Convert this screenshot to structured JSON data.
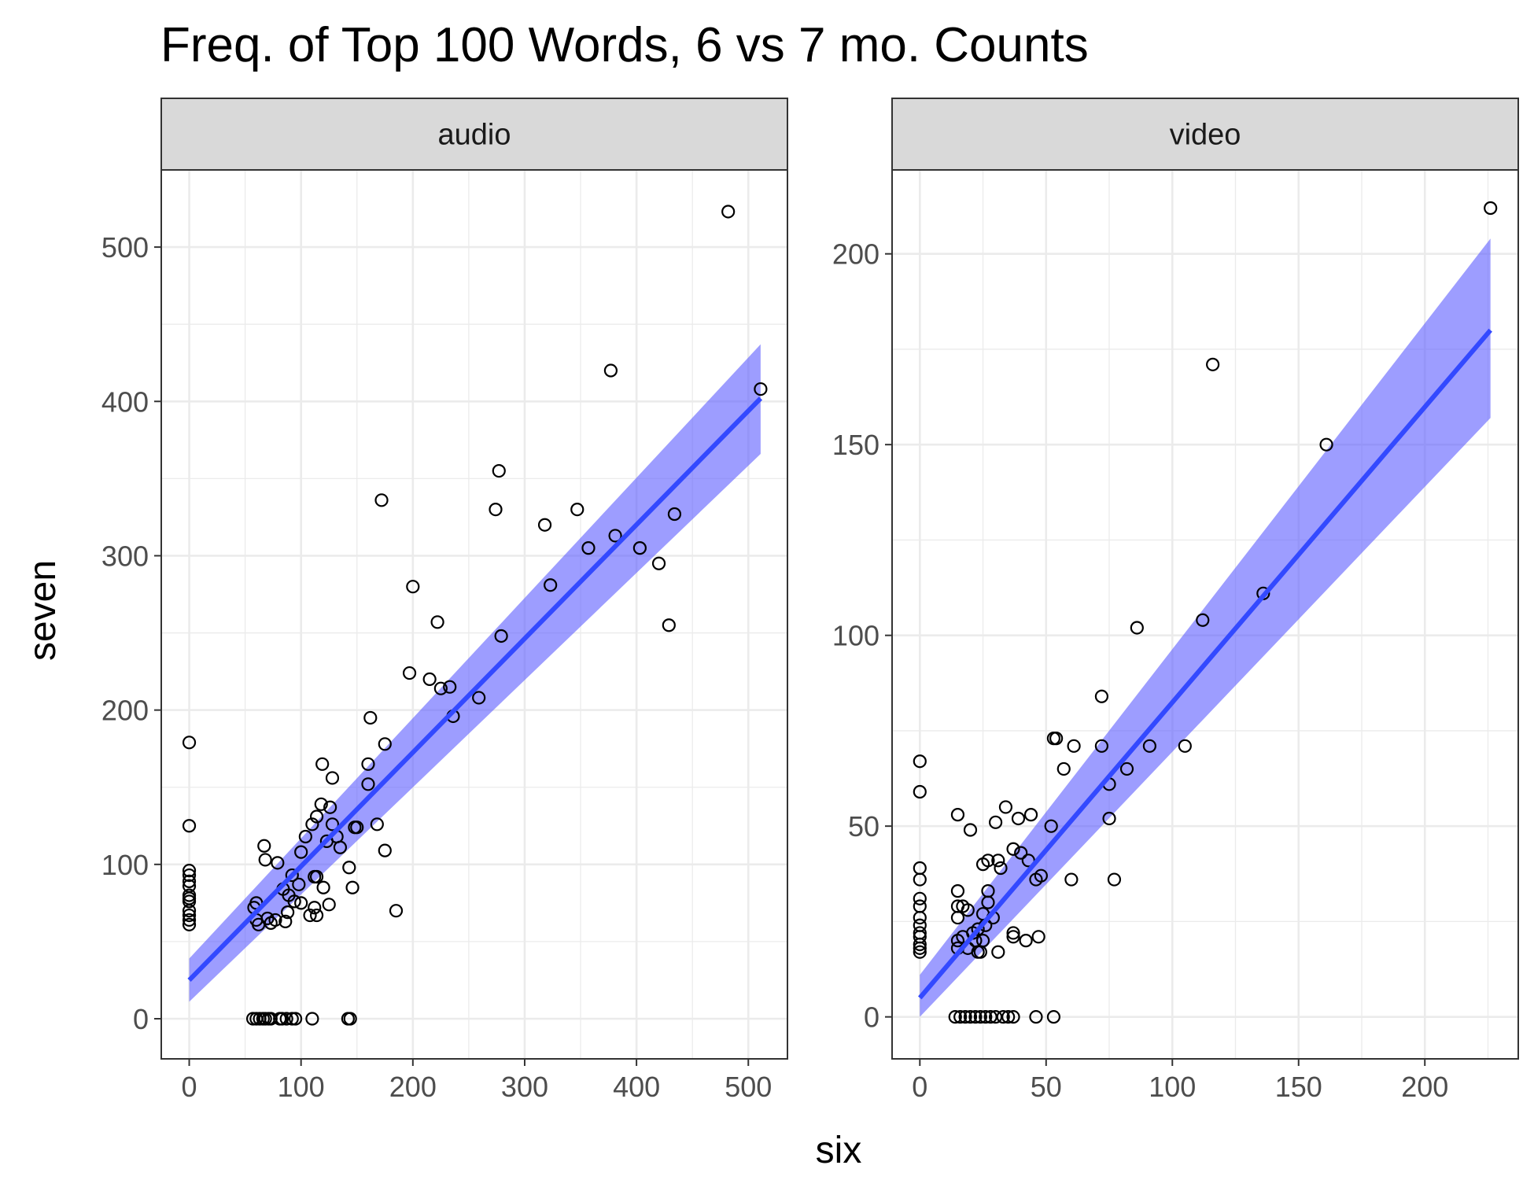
{
  "chart_data": {
    "type": "scatter",
    "title": "Freq. of Top 100 Words, 6 vs 7 mo. Counts",
    "xlabel": "six",
    "ylabel": "seven",
    "grid": true,
    "smooth": {
      "method": "lm",
      "color": "#3349ff",
      "ribbon_color": "#5b5bff"
    },
    "panels": [
      {
        "facet": "audio",
        "xlim": [
          -25,
          535
        ],
        "ylim": [
          -26,
          550
        ],
        "x_ticks": [
          0,
          100,
          200,
          300,
          400,
          500
        ],
        "y_ticks": [
          0,
          100,
          200,
          300,
          400,
          500
        ],
        "fit": {
          "x": [
            0,
            511
          ],
          "y": [
            25,
            402
          ]
        },
        "ribbon": {
          "x": [
            0,
            511
          ],
          "lower": [
            11,
            366
          ],
          "upper": [
            39,
            437
          ]
        },
        "points": [
          [
            482,
            523
          ],
          [
            511,
            408
          ],
          [
            377,
            420
          ],
          [
            277,
            355
          ],
          [
            172,
            336
          ],
          [
            274,
            330
          ],
          [
            347,
            330
          ],
          [
            434,
            327
          ],
          [
            318,
            320
          ],
          [
            381,
            313
          ],
          [
            357,
            305
          ],
          [
            403,
            305
          ],
          [
            420,
            295
          ],
          [
            200,
            280
          ],
          [
            323,
            281
          ],
          [
            429,
            255
          ],
          [
            222,
            257
          ],
          [
            279,
            248
          ],
          [
            197,
            224
          ],
          [
            215,
            220
          ],
          [
            225,
            214
          ],
          [
            233,
            215
          ],
          [
            259,
            208
          ],
          [
            236,
            196
          ],
          [
            162,
            195
          ],
          [
            0,
            179
          ],
          [
            175,
            178
          ],
          [
            119,
            165
          ],
          [
            160,
            165
          ],
          [
            128,
            156
          ],
          [
            160,
            152
          ],
          [
            118,
            139
          ],
          [
            126,
            137
          ],
          [
            114,
            131
          ],
          [
            110,
            126
          ],
          [
            128,
            126
          ],
          [
            168,
            126
          ],
          [
            0,
            125
          ],
          [
            148,
            124
          ],
          [
            150,
            124
          ],
          [
            104,
            118
          ],
          [
            132,
            118
          ],
          [
            123,
            115
          ],
          [
            135,
            111
          ],
          [
            67,
            112
          ],
          [
            100,
            108
          ],
          [
            175,
            109
          ],
          [
            68,
            103
          ],
          [
            79,
            101
          ],
          [
            143,
            98
          ],
          [
            0,
            96
          ],
          [
            0,
            93
          ],
          [
            0,
            89
          ],
          [
            0,
            86
          ],
          [
            112,
            92
          ],
          [
            114,
            92
          ],
          [
            92,
            93
          ],
          [
            84,
            84
          ],
          [
            98,
            87
          ],
          [
            120,
            85
          ],
          [
            146,
            85
          ],
          [
            89,
            80
          ],
          [
            0,
            80
          ],
          [
            0,
            78
          ],
          [
            0,
            76
          ],
          [
            94,
            76
          ],
          [
            100,
            75
          ],
          [
            58,
            72
          ],
          [
            112,
            72
          ],
          [
            125,
            74
          ],
          [
            60,
            75
          ],
          [
            185,
            70
          ],
          [
            0,
            70
          ],
          [
            0,
            67
          ],
          [
            108,
            67
          ],
          [
            114,
            67
          ],
          [
            88,
            69
          ],
          [
            70,
            65
          ],
          [
            60,
            64
          ],
          [
            77,
            64
          ],
          [
            73,
            62
          ],
          [
            86,
            63
          ],
          [
            0,
            64
          ],
          [
            0,
            61
          ],
          [
            62,
            61
          ],
          [
            57,
            0
          ],
          [
            60,
            0
          ],
          [
            63,
            0
          ],
          [
            66,
            0
          ],
          [
            68,
            0
          ],
          [
            71,
            0
          ],
          [
            73,
            0
          ],
          [
            81,
            0
          ],
          [
            83,
            0
          ],
          [
            87,
            0
          ],
          [
            92,
            0
          ],
          [
            95,
            0
          ],
          [
            110,
            0
          ],
          [
            142,
            0
          ],
          [
            144,
            0
          ]
        ]
      },
      {
        "facet": "video",
        "xlim": [
          -11,
          237
        ],
        "ylim": [
          -11,
          222
        ],
        "x_ticks": [
          0,
          50,
          100,
          150,
          200
        ],
        "y_ticks": [
          0,
          50,
          100,
          150,
          200
        ],
        "fit": {
          "x": [
            0,
            226
          ],
          "y": [
            5,
            180
          ]
        },
        "ribbon": {
          "x": [
            0,
            226
          ],
          "lower": [
            0,
            157
          ],
          "upper": [
            11,
            204
          ]
        },
        "points": [
          [
            226,
            212
          ],
          [
            116,
            171
          ],
          [
            161,
            150
          ],
          [
            136,
            111
          ],
          [
            112,
            104
          ],
          [
            86,
            102
          ],
          [
            72,
            84
          ],
          [
            53,
            73
          ],
          [
            54,
            73
          ],
          [
            61,
            71
          ],
          [
            72,
            71
          ],
          [
            91,
            71
          ],
          [
            105,
            71
          ],
          [
            0,
            67
          ],
          [
            57,
            65
          ],
          [
            82,
            65
          ],
          [
            75,
            61
          ],
          [
            0,
            59
          ],
          [
            34,
            55
          ],
          [
            15,
            53
          ],
          [
            44,
            53
          ],
          [
            39,
            52
          ],
          [
            75,
            52
          ],
          [
            30,
            51
          ],
          [
            52,
            50
          ],
          [
            20,
            49
          ],
          [
            37,
            44
          ],
          [
            40,
            43
          ],
          [
            43,
            41
          ],
          [
            27,
            41
          ],
          [
            25,
            40
          ],
          [
            31,
            41
          ],
          [
            32,
            39
          ],
          [
            0,
            39
          ],
          [
            48,
            37
          ],
          [
            46,
            36
          ],
          [
            60,
            36
          ],
          [
            77,
            36
          ],
          [
            0,
            36
          ],
          [
            15,
            33
          ],
          [
            27,
            33
          ],
          [
            0,
            31
          ],
          [
            0,
            29
          ],
          [
            15,
            29
          ],
          [
            17,
            29
          ],
          [
            19,
            28
          ],
          [
            27,
            30
          ],
          [
            0,
            26
          ],
          [
            15,
            26
          ],
          [
            25,
            27
          ],
          [
            29,
            26
          ],
          [
            0,
            24
          ],
          [
            0,
            22
          ],
          [
            23,
            23
          ],
          [
            21,
            22
          ],
          [
            26,
            24
          ],
          [
            37,
            22
          ],
          [
            37,
            21
          ],
          [
            42,
            20
          ],
          [
            47,
            21
          ],
          [
            0,
            21
          ],
          [
            0,
            19
          ],
          [
            15,
            20
          ],
          [
            17,
            21
          ],
          [
            22,
            20
          ],
          [
            25,
            20
          ],
          [
            0,
            18
          ],
          [
            0,
            17
          ],
          [
            15,
            18
          ],
          [
            19,
            18
          ],
          [
            23,
            17
          ],
          [
            31,
            17
          ],
          [
            24,
            17
          ],
          [
            14,
            0
          ],
          [
            16,
            0
          ],
          [
            18,
            0
          ],
          [
            20,
            0
          ],
          [
            22,
            0
          ],
          [
            24,
            0
          ],
          [
            26,
            0
          ],
          [
            28,
            0
          ],
          [
            30,
            0
          ],
          [
            33,
            0
          ],
          [
            35,
            0
          ],
          [
            37,
            0
          ],
          [
            46,
            0
          ],
          [
            53,
            0
          ]
        ]
      }
    ]
  }
}
